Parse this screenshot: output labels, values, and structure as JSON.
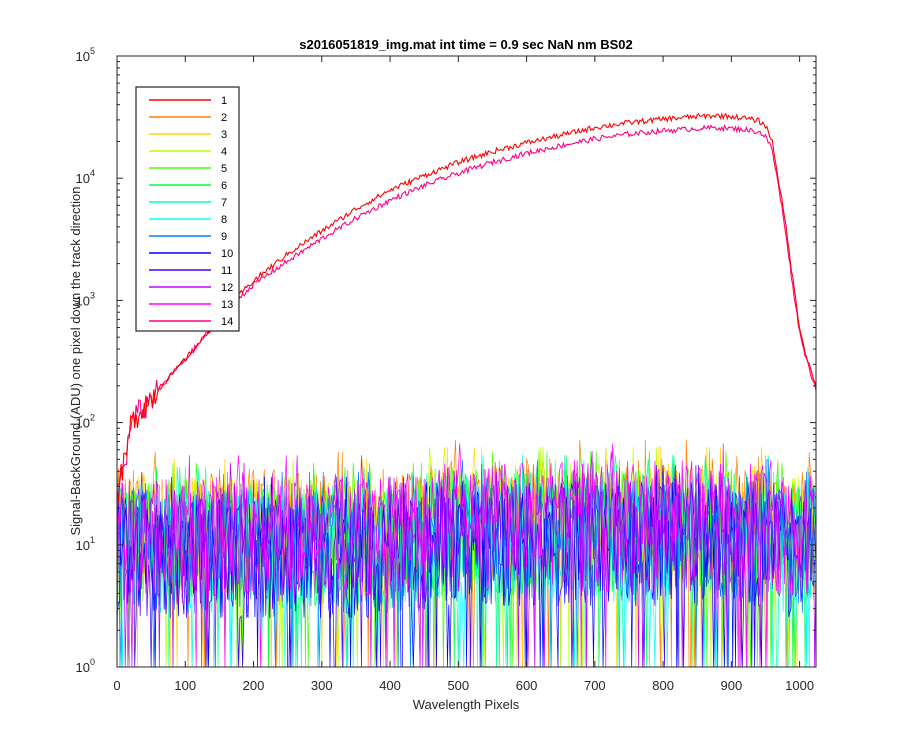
{
  "chart_data": {
    "type": "line",
    "title": "s2016051819_img.mat int time = 0.9 sec  NaN nm BS02",
    "xlabel": "Wavelength Pixels",
    "ylabel": "Signal-BackGround (ADU) one pixel down the track direction",
    "xlim": [
      0,
      1024
    ],
    "ylim": [
      1,
      100000
    ],
    "yscale": "log",
    "grid": false,
    "legend_position": "top-left",
    "x_ticks": [
      0,
      100,
      200,
      300,
      400,
      500,
      600,
      700,
      800,
      900,
      1000
    ],
    "y_ticks": [
      {
        "value": 1,
        "base": "10",
        "exp": "0"
      },
      {
        "value": 10,
        "base": "10",
        "exp": "1"
      },
      {
        "value": 100,
        "base": "10",
        "exp": "2"
      },
      {
        "value": 1000,
        "base": "10",
        "exp": "3"
      },
      {
        "value": 10000,
        "base": "10",
        "exp": "4"
      },
      {
        "value": 100000,
        "base": "10",
        "exp": "5"
      }
    ],
    "series": [
      {
        "name": "1",
        "color": "#ff0000",
        "kind": "signal",
        "x": [
          0,
          5,
          10,
          15,
          20,
          30,
          50,
          75,
          100,
          125,
          150,
          175,
          200,
          250,
          300,
          350,
          400,
          450,
          500,
          550,
          600,
          650,
          700,
          750,
          800,
          850,
          880,
          900,
          920,
          940,
          950,
          960,
          970,
          980,
          990,
          1000,
          1010,
          1020,
          1024
        ],
        "y": [
          25,
          35,
          45,
          60,
          95,
          120,
          160,
          230,
          330,
          480,
          720,
          1050,
          1450,
          2400,
          3700,
          5600,
          8000,
          10500,
          13500,
          16500,
          19500,
          22500,
          26000,
          28500,
          30500,
          32000,
          32500,
          32000,
          31000,
          29500,
          27000,
          20000,
          9000,
          4000,
          1500,
          600,
          350,
          230,
          200
        ]
      },
      {
        "name": "2",
        "color": "#ff7f00",
        "kind": "noise",
        "level": 16
      },
      {
        "name": "3",
        "color": "#ffd700",
        "kind": "noise",
        "level": 14
      },
      {
        "name": "4",
        "color": "#bfff00",
        "kind": "noise",
        "level": 14
      },
      {
        "name": "5",
        "color": "#40ff00",
        "kind": "noise",
        "level": 13
      },
      {
        "name": "6",
        "color": "#00ff40",
        "kind": "noise",
        "level": 12
      },
      {
        "name": "7",
        "color": "#00ffbf",
        "kind": "noise",
        "level": 12
      },
      {
        "name": "8",
        "color": "#00ffff",
        "kind": "noise",
        "level": 11
      },
      {
        "name": "9",
        "color": "#0080ff",
        "kind": "noise",
        "level": 11
      },
      {
        "name": "10",
        "color": "#0000ff",
        "kind": "noise",
        "level": 10
      },
      {
        "name": "11",
        "color": "#4000ff",
        "kind": "noise",
        "level": 10
      },
      {
        "name": "12",
        "color": "#bf00ff",
        "kind": "noise",
        "level": 13
      },
      {
        "name": "13",
        "color": "#ff00ff",
        "kind": "noise",
        "level": 15
      },
      {
        "name": "14",
        "color": "#ff0080",
        "kind": "signal",
        "x": [
          0,
          5,
          10,
          15,
          20,
          30,
          50,
          75,
          100,
          125,
          150,
          175,
          200,
          250,
          300,
          350,
          400,
          450,
          500,
          550,
          600,
          650,
          700,
          750,
          800,
          850,
          880,
          900,
          920,
          940,
          950,
          960,
          970,
          980,
          990,
          1000,
          1010,
          1020,
          1024
        ],
        "y": [
          25,
          35,
          45,
          60,
          95,
          120,
          160,
          230,
          330,
          480,
          720,
          1000,
          1350,
          2100,
          3200,
          4700,
          6600,
          8700,
          11000,
          13500,
          16000,
          18500,
          21000,
          23000,
          24500,
          25500,
          26000,
          25500,
          25000,
          24000,
          22000,
          17000,
          8000,
          3500,
          1300,
          550,
          330,
          220,
          190
        ]
      }
    ]
  }
}
